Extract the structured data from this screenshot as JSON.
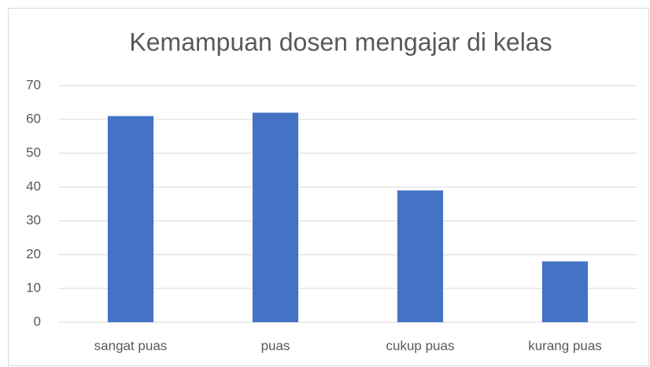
{
  "chart_data": {
    "type": "bar",
    "title": "Kemampuan dosen mengajar di kelas",
    "categories": [
      "sangat puas",
      "puas",
      "cukup puas",
      "kurang puas"
    ],
    "values": [
      61,
      62,
      39,
      18
    ],
    "color": "#4472c4",
    "ylim": [
      0,
      70
    ],
    "yticks": [
      0,
      10,
      20,
      30,
      40,
      50,
      60,
      70
    ],
    "grid": true
  }
}
